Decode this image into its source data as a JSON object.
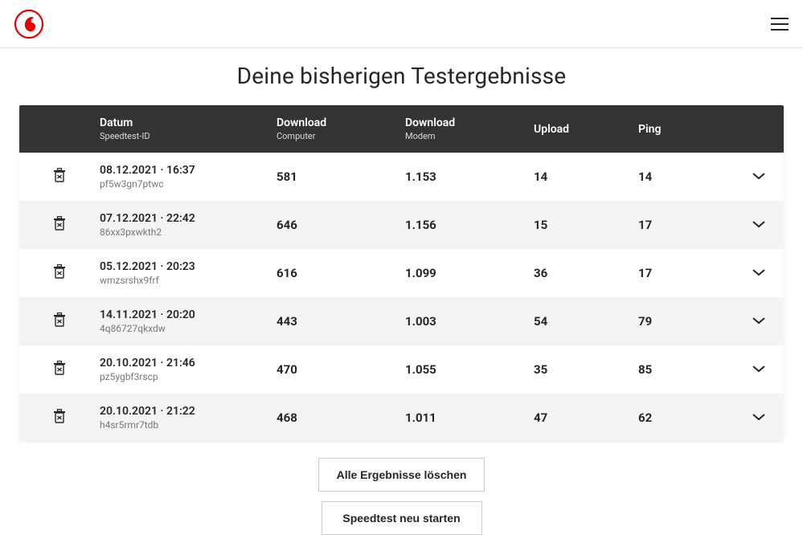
{
  "page_title": "Deine bisherigen Testergebnisse",
  "brand_color": "#e60000",
  "header_bg": "#333333",
  "row_alt_bg": "#f4f4f4",
  "columns": {
    "datum": {
      "label": "Datum",
      "sub": "Speedtest-ID"
    },
    "dl_computer": {
      "label": "Download",
      "sub": "Computer"
    },
    "dl_modem": {
      "label": "Download",
      "sub": "Modem"
    },
    "upload": {
      "label": "Upload"
    },
    "ping": {
      "label": "Ping"
    }
  },
  "rows": [
    {
      "date": "08.12.2021",
      "time": "16:37",
      "id": "pf5w3gn7ptwc",
      "dl_computer": "581",
      "dl_modem": "1.153",
      "upload": "14",
      "ping": "14"
    },
    {
      "date": "07.12.2021",
      "time": "22:42",
      "id": "86xx3pxwkth2",
      "dl_computer": "646",
      "dl_modem": "1.156",
      "upload": "15",
      "ping": "17"
    },
    {
      "date": "05.12.2021",
      "time": "20:23",
      "id": "wmzsrshx9frf",
      "dl_computer": "616",
      "dl_modem": "1.099",
      "upload": "36",
      "ping": "17"
    },
    {
      "date": "14.11.2021",
      "time": "20:20",
      "id": "4q86727qkxdw",
      "dl_computer": "443",
      "dl_modem": "1.003",
      "upload": "54",
      "ping": "79"
    },
    {
      "date": "20.10.2021",
      "time": "21:46",
      "id": "pz5ygbf3rscp",
      "dl_computer": "470",
      "dl_modem": "1.055",
      "upload": "35",
      "ping": "85"
    },
    {
      "date": "20.10.2021",
      "time": "21:22",
      "id": "h4sr5rmr7tdb",
      "dl_computer": "468",
      "dl_modem": "1.011",
      "upload": "47",
      "ping": "62"
    }
  ],
  "buttons": {
    "delete_all": "Alle Ergebnisse löschen",
    "restart": "Speedtest neu starten"
  }
}
